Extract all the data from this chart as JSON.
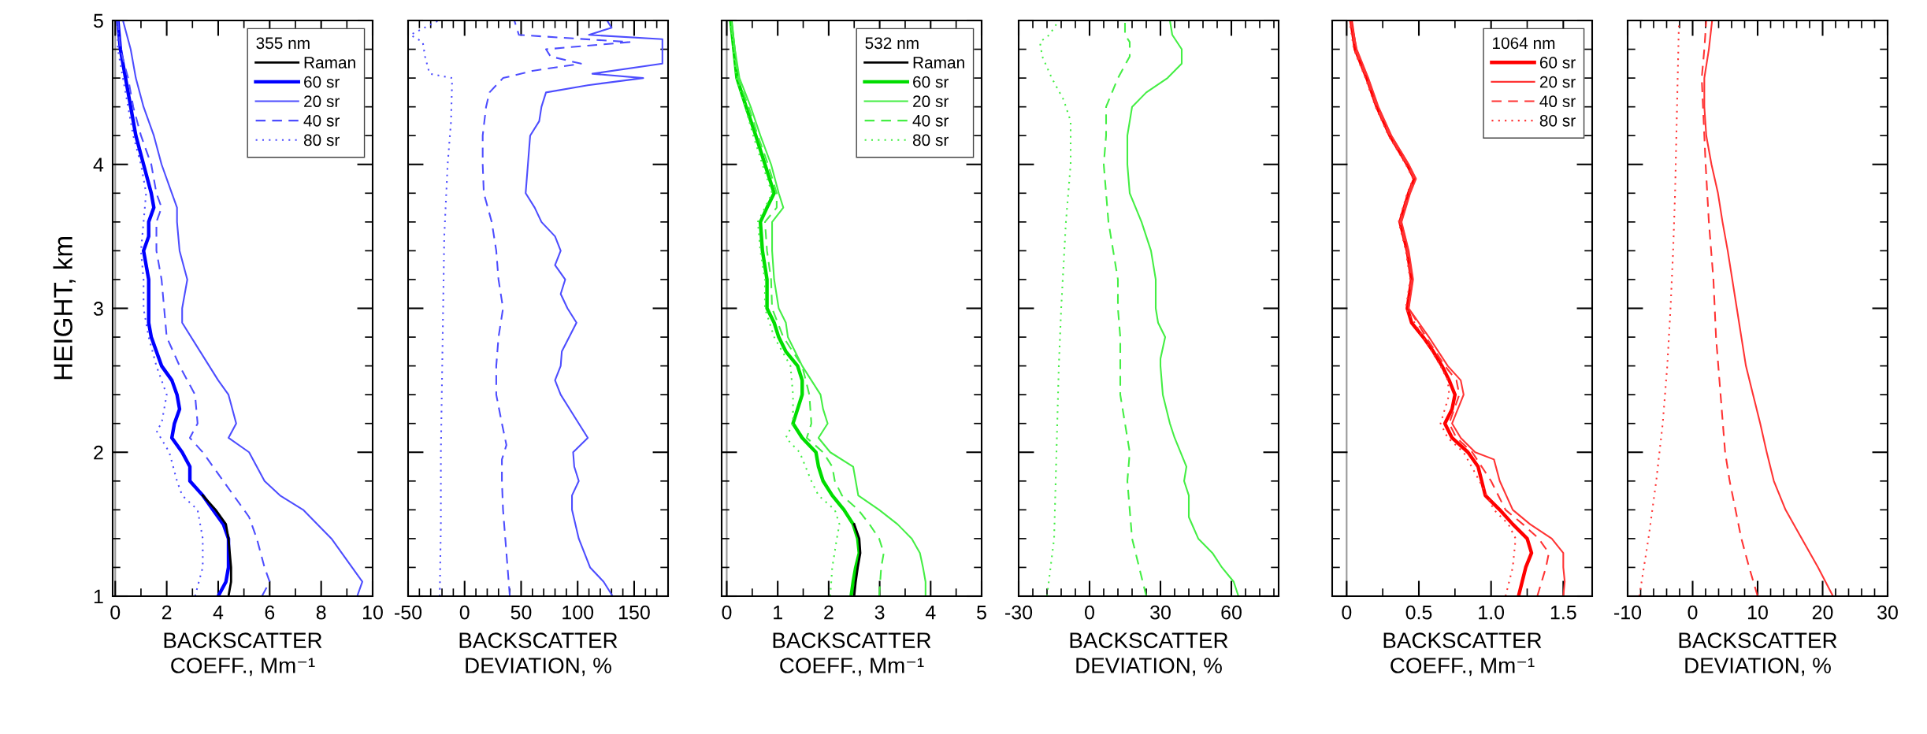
{
  "chart_data": [
    {
      "type": "line",
      "xlabel": "BACKSCATTER\nCOEFF., Mm⁻¹",
      "ylabel": "HEIGHT, km",
      "legend_title": "355 nm",
      "legend": "top right",
      "grid": false,
      "marker": "none",
      "xlim": [
        -0.1,
        10
      ],
      "xticks": [
        0,
        2,
        4,
        6,
        8,
        10
      ],
      "ylim": [
        1,
        5
      ],
      "yticks": [
        1,
        2,
        3,
        4,
        5
      ],
      "ref_lines": [
        {
          "axis": "x",
          "value": 0,
          "color": "#999999"
        }
      ],
      "series": [
        {
          "name": "Raman",
          "color": "#000000",
          "line_style": "solid",
          "x": [
            4.4,
            4.5,
            4.5,
            4.4,
            4.3,
            3.9,
            3.4
          ],
          "values": [
            1.0,
            1.1,
            1.2,
            1.4,
            1.5,
            1.6,
            1.7
          ]
        },
        {
          "name": "60 sr",
          "color": "#0000ff",
          "line_style": "solid",
          "x": [
            4.0,
            4.3,
            4.4,
            4.4,
            4.2,
            3.8,
            3.4,
            2.9,
            2.9,
            2.6,
            2.2,
            2.3,
            2.5,
            2.4,
            2.2,
            1.8,
            1.6,
            1.4,
            1.3,
            1.3,
            1.3,
            1.1,
            1.3,
            1.3,
            1.5,
            1.4,
            1.1,
            0.8,
            0.6,
            0.4,
            0.2,
            0.1
          ],
          "values": [
            1.0,
            1.1,
            1.2,
            1.4,
            1.5,
            1.6,
            1.7,
            1.8,
            1.9,
            2.0,
            2.1,
            2.2,
            2.3,
            2.4,
            2.5,
            2.6,
            2.7,
            2.8,
            2.9,
            3.0,
            3.2,
            3.4,
            3.5,
            3.6,
            3.7,
            3.8,
            4.0,
            4.2,
            4.4,
            4.6,
            4.8,
            5.0
          ]
        },
        {
          "name": "20 sr",
          "color": "#4d4dff",
          "line_style": "solid",
          "x": [
            9.4,
            9.6,
            9.2,
            8.4,
            7.3,
            6.4,
            5.8,
            5.5,
            5.2,
            4.4,
            4.7,
            4.4,
            4.0,
            3.3,
            2.6,
            2.6,
            2.8,
            2.5,
            2.4,
            2.4,
            2.2,
            1.8,
            1.5,
            1.1,
            0.8,
            0.6,
            0.3
          ],
          "values": [
            1.0,
            1.1,
            1.2,
            1.4,
            1.6,
            1.7,
            1.8,
            1.9,
            2.0,
            2.1,
            2.2,
            2.4,
            2.5,
            2.7,
            2.9,
            3.0,
            3.2,
            3.4,
            3.6,
            3.7,
            3.8,
            4.0,
            4.2,
            4.4,
            4.6,
            4.8,
            5.0
          ]
        },
        {
          "name": "40 sr",
          "color": "#4d4dff",
          "line_style": "dashed",
          "x": [
            5.7,
            6.0,
            5.8,
            5.5,
            5.2,
            4.6,
            3.8,
            3.4,
            2.9,
            3.2,
            3.1,
            2.5,
            2.0,
            1.9,
            1.8,
            1.6,
            1.6,
            1.8,
            1.6,
            1.4,
            1.0,
            0.7,
            0.5,
            0.2,
            0.1
          ],
          "values": [
            1.0,
            1.1,
            1.2,
            1.4,
            1.55,
            1.7,
            1.9,
            2.0,
            2.1,
            2.2,
            2.4,
            2.6,
            2.8,
            3.0,
            3.2,
            3.4,
            3.6,
            3.7,
            3.8,
            4.0,
            4.2,
            4.4,
            4.6,
            4.8,
            5.0
          ]
        },
        {
          "name": "80 sr",
          "color": "#4d4dff",
          "line_style": "dotted",
          "x": [
            3.1,
            3.4,
            3.4,
            3.2,
            2.6,
            2.4,
            2.1,
            1.6,
            1.8,
            2.0,
            1.6,
            1.3,
            1.1,
            1.1,
            1.0,
            1.1,
            1.2,
            1.0,
            0.7,
            0.5,
            0.3,
            0.1,
            0.1
          ],
          "values": [
            1.0,
            1.2,
            1.4,
            1.6,
            1.7,
            1.8,
            2.0,
            2.15,
            2.2,
            2.4,
            2.6,
            2.8,
            3.0,
            3.2,
            3.4,
            3.6,
            3.8,
            4.0,
            4.2,
            4.4,
            4.6,
            4.8,
            5.0
          ]
        }
      ]
    },
    {
      "type": "line",
      "xlabel": "BACKSCATTER\nDEVIATION, %",
      "grid": false,
      "marker": "none",
      "tick_labels": "x",
      "xlim": [
        -50,
        180
      ],
      "xticks": [
        -50,
        0,
        50,
        100,
        150
      ],
      "ylim": [
        1,
        5
      ],
      "yticks": [
        1,
        2,
        3,
        4,
        5
      ],
      "series": [
        {
          "color": "#4d4dff",
          "line_style": "solid",
          "x": [
            131,
            123,
            111,
            101,
            95,
            95,
            101,
            97,
            96,
            109,
            101,
            85,
            80,
            85,
            86,
            99,
            91,
            85,
            89,
            80,
            85,
            80,
            68,
            62,
            54,
            56,
            58,
            66,
            68,
            72,
            109,
            158,
            113,
            175,
            175,
            110,
            130,
            126
          ],
          "values": [
            1.0,
            1.1,
            1.2,
            1.4,
            1.6,
            1.7,
            1.8,
            1.9,
            2.0,
            2.1,
            2.2,
            2.4,
            2.5,
            2.6,
            2.7,
            2.9,
            3.0,
            3.1,
            3.2,
            3.3,
            3.4,
            3.5,
            3.6,
            3.7,
            3.8,
            4.0,
            4.2,
            4.3,
            4.4,
            4.5,
            4.55,
            4.6,
            4.63,
            4.7,
            4.87,
            4.9,
            4.95,
            5.0
          ]
        },
        {
          "color": "#4d4dff",
          "line_style": "dashed",
          "x": [
            40,
            38,
            36,
            34,
            33,
            33,
            37,
            33,
            28,
            28,
            30,
            34,
            30,
            28,
            24,
            17,
            16,
            16,
            19,
            22,
            34,
            60,
            103,
            76,
            72,
            146,
            48,
            44
          ],
          "values": [
            1.0,
            1.2,
            1.4,
            1.6,
            1.8,
            1.95,
            2.05,
            2.2,
            2.4,
            2.6,
            2.8,
            3.0,
            3.2,
            3.4,
            3.6,
            3.8,
            4.0,
            4.2,
            4.4,
            4.5,
            4.6,
            4.65,
            4.7,
            4.75,
            4.8,
            4.85,
            4.9,
            5.0
          ]
        },
        {
          "color": "#4d4dff",
          "line_style": "dotted",
          "x": [
            -22,
            -21,
            -21,
            -20,
            -19,
            -18,
            -15,
            -12,
            -11,
            -31,
            -35,
            -37,
            -48,
            -23
          ],
          "values": [
            1.0,
            1.5,
            2.0,
            2.5,
            3.0,
            3.5,
            4.0,
            4.3,
            4.6,
            4.63,
            4.75,
            4.85,
            4.9,
            5.0
          ]
        }
      ]
    },
    {
      "type": "line",
      "xlabel": "BACKSCATTER\nCOEFF., Mm⁻¹",
      "legend_title": "532 nm",
      "legend": "top right",
      "grid": false,
      "marker": "none",
      "tick_labels": "x",
      "xlim": [
        -0.1,
        5
      ],
      "xticks": [
        0,
        1,
        2,
        3,
        4,
        5
      ],
      "ylim": [
        1,
        5
      ],
      "yticks": [
        1,
        2,
        3,
        4,
        5
      ],
      "ref_lines": [
        {
          "axis": "x",
          "value": 0,
          "color": "#999999"
        }
      ],
      "series": [
        {
          "name": "Raman",
          "color": "#000000",
          "line_style": "solid",
          "x": [
            2.5,
            2.53,
            2.57,
            2.62,
            2.6,
            2.5
          ],
          "values": [
            1.0,
            1.1,
            1.2,
            1.3,
            1.4,
            1.5
          ]
        },
        {
          "name": "60 sr",
          "color": "#00dd00",
          "line_style": "solid",
          "x": [
            2.44,
            2.48,
            2.53,
            2.6,
            2.57,
            2.48,
            2.3,
            2.07,
            1.89,
            1.8,
            1.75,
            1.48,
            1.3,
            1.39,
            1.48,
            1.48,
            1.39,
            1.16,
            1.02,
            0.93,
            0.79,
            0.79,
            0.7,
            0.66,
            0.79,
            0.93,
            0.75,
            0.57,
            0.38,
            0.2,
            0.14,
            0.08
          ],
          "values": [
            1.0,
            1.1,
            1.2,
            1.3,
            1.4,
            1.5,
            1.6,
            1.7,
            1.8,
            1.9,
            2.0,
            2.1,
            2.2,
            2.3,
            2.4,
            2.5,
            2.6,
            2.7,
            2.8,
            2.9,
            3.0,
            3.2,
            3.4,
            3.6,
            3.7,
            3.8,
            4.0,
            4.2,
            4.4,
            4.6,
            4.8,
            5.0
          ]
        },
        {
          "name": "20 sr",
          "color": "#44ee44",
          "line_style": "solid",
          "x": [
            3.9,
            3.9,
            3.85,
            3.79,
            3.63,
            3.35,
            2.99,
            2.58,
            2.53,
            2.48,
            2.03,
            1.8,
            1.98,
            1.89,
            1.84,
            1.66,
            1.48,
            1.34,
            1.2,
            1.16,
            1.02,
            0.93,
            0.89,
            0.89,
            1.11,
            1.02,
            0.87,
            0.66,
            0.47,
            0.25,
            0.16,
            0.09
          ],
          "values": [
            1.0,
            1.1,
            1.2,
            1.3,
            1.4,
            1.5,
            1.6,
            1.7,
            1.8,
            1.9,
            2.0,
            2.1,
            2.2,
            2.3,
            2.4,
            2.5,
            2.6,
            2.7,
            2.8,
            2.9,
            3.0,
            3.2,
            3.4,
            3.6,
            3.7,
            3.8,
            4.0,
            4.2,
            4.4,
            4.6,
            4.8,
            5.0
          ]
        },
        {
          "name": "40 sr",
          "color": "#44ee44",
          "line_style": "dashed",
          "x": [
            2.99,
            3.03,
            3.08,
            2.99,
            2.8,
            2.58,
            2.26,
            2.12,
            2.07,
            1.89,
            1.57,
            1.66,
            1.62,
            1.48,
            1.11,
            0.89,
            0.87,
            0.79,
            0.75,
            0.98,
            0.98,
            0.81,
            0.61,
            0.43,
            0.22,
            0.15,
            0.08
          ],
          "values": [
            1.0,
            1.2,
            1.3,
            1.4,
            1.5,
            1.6,
            1.7,
            1.8,
            1.9,
            2.0,
            2.1,
            2.2,
            2.4,
            2.6,
            2.8,
            3.0,
            3.2,
            3.4,
            3.6,
            3.7,
            3.8,
            4.0,
            4.2,
            4.4,
            4.6,
            4.8,
            5.0
          ]
        },
        {
          "name": "80 sr",
          "color": "#44ee44",
          "line_style": "dotted",
          "x": [
            2.03,
            2.07,
            2.16,
            2.21,
            2.12,
            1.8,
            1.66,
            1.43,
            1.16,
            1.3,
            1.3,
            1.25,
            0.93,
            0.75,
            0.75,
            0.66,
            0.61,
            0.75,
            0.89,
            0.7,
            0.52,
            0.36,
            0.19,
            0.13,
            0.07
          ],
          "values": [
            1.0,
            1.2,
            1.4,
            1.5,
            1.6,
            1.7,
            1.8,
            2.0,
            2.1,
            2.2,
            2.4,
            2.6,
            2.8,
            3.0,
            3.2,
            3.4,
            3.6,
            3.7,
            3.8,
            4.0,
            4.2,
            4.4,
            4.6,
            4.8,
            5.0
          ]
        }
      ]
    },
    {
      "type": "line",
      "xlabel": "BACKSCATTER\nDEVIATION, %",
      "grid": false,
      "marker": "none",
      "tick_labels": "x",
      "xlim": [
        -30,
        80
      ],
      "xticks": [
        -30,
        0,
        30,
        60
      ],
      "ylim": [
        1,
        5
      ],
      "yticks": [
        1,
        2,
        3,
        4,
        5
      ],
      "series": [
        {
          "color": "#44ee44",
          "line_style": "solid",
          "x": [
            63,
            61,
            56,
            52,
            46,
            42,
            42,
            40,
            41,
            39,
            36,
            34,
            31,
            30,
            30,
            32,
            29,
            28,
            28,
            26,
            22,
            17,
            16,
            16,
            17,
            18,
            24,
            33,
            39,
            39,
            35,
            34
          ],
          "values": [
            1.0,
            1.1,
            1.2,
            1.3,
            1.4,
            1.55,
            1.7,
            1.8,
            1.9,
            1.98,
            2.1,
            2.2,
            2.4,
            2.6,
            2.65,
            2.8,
            2.9,
            3.0,
            3.2,
            3.4,
            3.6,
            3.8,
            4.0,
            4.2,
            4.3,
            4.4,
            4.5,
            4.6,
            4.7,
            4.8,
            4.9,
            5.0
          ]
        },
        {
          "color": "#44ee44",
          "line_style": "dashed",
          "x": [
            24,
            21,
            18,
            17,
            16,
            17,
            15,
            13,
            13,
            13,
            12,
            12,
            10,
            8,
            7,
            6,
            7,
            7,
            12,
            17,
            17,
            15,
            15
          ],
          "values": [
            1.0,
            1.2,
            1.4,
            1.6,
            1.8,
            2.0,
            2.2,
            2.4,
            2.6,
            2.8,
            3.0,
            3.2,
            3.4,
            3.6,
            3.8,
            4.0,
            4.2,
            4.4,
            4.6,
            4.75,
            4.85,
            4.9,
            5.0
          ]
        },
        {
          "color": "#44ee44",
          "line_style": "dotted",
          "x": [
            -18,
            -15,
            -14,
            -13,
            -12,
            -10,
            -8,
            -8,
            -11,
            -16,
            -20,
            -21,
            -17,
            -13
          ],
          "values": [
            1.0,
            1.4,
            2.0,
            2.6,
            3.0,
            3.6,
            4.0,
            4.3,
            4.45,
            4.6,
            4.75,
            4.85,
            4.9,
            5.0
          ]
        }
      ]
    },
    {
      "type": "line",
      "xlabel": "BACKSCATTER\nCOEFF., Mm⁻¹",
      "legend_title": "1064 nm",
      "legend": "top right",
      "grid": false,
      "marker": "none",
      "tick_labels": "x",
      "xlim": [
        -0.1,
        1.7
      ],
      "xticks": [
        0,
        0.5,
        {
          "value": 1,
          "label": "1.0"
        },
        1.5
      ],
      "ylim": [
        1,
        5
      ],
      "yticks": [
        1,
        2,
        3,
        4,
        5
      ],
      "ref_lines": [
        {
          "axis": "x",
          "value": 0,
          "color": "#999999"
        }
      ],
      "series": [
        {
          "name": "60 sr",
          "color": "#ff0000",
          "line_style": "solid",
          "x": [
            1.19,
            1.24,
            1.28,
            1.25,
            1.15,
            1.06,
            0.96,
            0.91,
            0.84,
            0.73,
            0.68,
            0.73,
            0.75,
            0.73,
            0.71,
            0.66,
            0.6,
            0.53,
            0.45,
            0.42,
            0.45,
            0.42,
            0.37,
            0.43,
            0.47,
            0.42,
            0.3,
            0.21,
            0.14,
            0.06,
            0.03
          ],
          "values": [
            1.0,
            1.2,
            1.3,
            1.4,
            1.5,
            1.6,
            1.7,
            1.9,
            2.0,
            2.1,
            2.2,
            2.3,
            2.4,
            2.45,
            2.5,
            2.6,
            2.7,
            2.8,
            2.9,
            3.0,
            3.2,
            3.4,
            3.6,
            3.8,
            3.9,
            4.0,
            4.2,
            4.4,
            4.6,
            4.8,
            5.0
          ]
        },
        {
          "name": "20 sr",
          "color": "#ff3333",
          "line_style": "solid",
          "x": [
            1.5,
            1.51,
            1.5,
            1.5,
            1.42,
            1.27,
            1.15,
            1.06,
            1.02,
            0.89,
            0.79,
            0.73,
            0.81,
            0.79,
            0.7,
            0.57,
            0.43,
            0.46,
            0.43,
            0.38,
            0.44,
            0.48,
            0.43,
            0.31,
            0.22,
            0.15,
            0.07,
            0.03
          ],
          "values": [
            1.0,
            1.1,
            1.2,
            1.3,
            1.4,
            1.5,
            1.6,
            1.8,
            1.95,
            2.0,
            2.1,
            2.2,
            2.4,
            2.5,
            2.6,
            2.8,
            3.0,
            3.2,
            3.4,
            3.6,
            3.8,
            3.9,
            4.0,
            4.2,
            4.4,
            4.6,
            4.8,
            5.0
          ]
        },
        {
          "name": "40 sr",
          "color": "#ff3333",
          "line_style": "dashed",
          "x": [
            1.32,
            1.38,
            1.4,
            1.33,
            1.22,
            1.1,
            1.0,
            0.87,
            0.76,
            0.71,
            0.78,
            0.76,
            0.68,
            0.55,
            0.43,
            0.45,
            0.42,
            0.37,
            0.43,
            0.47,
            0.42,
            0.3,
            0.21,
            0.14,
            0.06,
            0.03
          ],
          "values": [
            1.0,
            1.2,
            1.3,
            1.4,
            1.5,
            1.6,
            1.8,
            2.0,
            2.1,
            2.2,
            2.4,
            2.5,
            2.6,
            2.8,
            3.0,
            3.2,
            3.4,
            3.6,
            3.8,
            3.9,
            4.0,
            4.2,
            4.4,
            4.6,
            4.8,
            5.0
          ]
        },
        {
          "name": "80 sr",
          "color": "#ff3333",
          "line_style": "dotted",
          "x": [
            1.1,
            1.15,
            1.17,
            1.12,
            1.02,
            0.92,
            0.81,
            0.7,
            0.65,
            0.71,
            0.7,
            0.65,
            0.53,
            0.41,
            0.44,
            0.41,
            0.36,
            0.42,
            0.46,
            0.41,
            0.29,
            0.2,
            0.13,
            0.05,
            0.02
          ],
          "values": [
            1.0,
            1.2,
            1.4,
            1.5,
            1.6,
            1.8,
            2.0,
            2.1,
            2.2,
            2.4,
            2.5,
            2.6,
            2.8,
            3.0,
            3.2,
            3.4,
            3.6,
            3.8,
            3.9,
            4.0,
            4.2,
            4.4,
            4.6,
            4.8,
            5.0
          ]
        }
      ]
    },
    {
      "type": "line",
      "xlabel": "BACKSCATTER\nDEVIATION, %",
      "grid": false,
      "marker": "none",
      "tick_labels": "x",
      "xlim": [
        -10,
        30
      ],
      "xticks": [
        -10,
        0,
        10,
        20,
        30
      ],
      "ylim": [
        1,
        5
      ],
      "yticks": [
        1,
        2,
        3,
        4,
        5
      ],
      "series": [
        {
          "color": "#ff3333",
          "line_style": "solid",
          "x": [
            21.6,
            19.3,
            16.8,
            14.3,
            12.5,
            11.4,
            10.4,
            9.3,
            8.2,
            7.5,
            6.8,
            6.1,
            5.4,
            4.6,
            3.9,
            2.9,
            2.1,
            1.8,
            1.8,
            2.5,
            3.0
          ],
          "values": [
            1.0,
            1.2,
            1.4,
            1.6,
            1.8,
            2.0,
            2.2,
            2.4,
            2.6,
            2.8,
            3.0,
            3.2,
            3.4,
            3.6,
            3.8,
            4.0,
            4.2,
            4.4,
            4.6,
            4.8,
            5.0
          ]
        },
        {
          "color": "#ff3333",
          "line_style": "dashed",
          "x": [
            10,
            8.7,
            7.5,
            6.6,
            5.7,
            5.0,
            4.3,
            3.6,
            3.2,
            2.5,
            2.0,
            1.6,
            1.4,
            1.8,
            2.1
          ],
          "values": [
            1.0,
            1.2,
            1.4,
            1.6,
            1.8,
            2.0,
            2.4,
            2.8,
            3.2,
            3.6,
            4.0,
            4.4,
            4.6,
            4.8,
            5.0
          ]
        },
        {
          "color": "#ff3333",
          "line_style": "dotted",
          "x": [
            -8.2,
            -6.8,
            -5.6,
            -4.6,
            -3.9,
            -3.4,
            -3.0,
            -2.7,
            -2.5,
            -2.3,
            -2.1
          ],
          "values": [
            1.0,
            1.4,
            1.8,
            2.2,
            2.6,
            3.0,
            3.4,
            3.8,
            4.2,
            4.6,
            5.0
          ]
        }
      ]
    }
  ]
}
